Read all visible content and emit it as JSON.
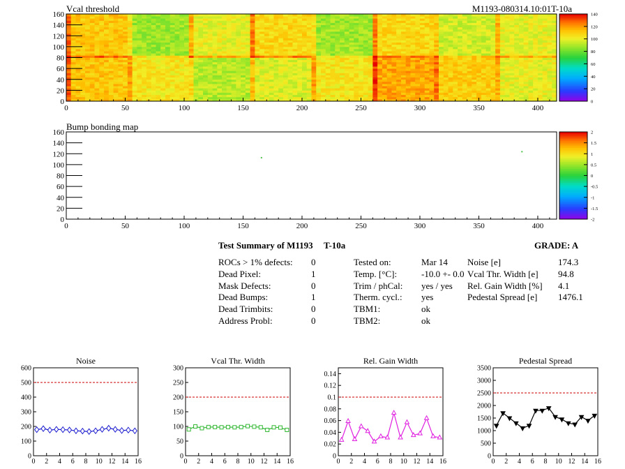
{
  "maps": [
    {
      "title": "Vcal threshold",
      "module_id": "M1193-080314.10:01T-10a",
      "x_ticks": [
        "0",
        "50",
        "100",
        "150",
        "200",
        "250",
        "300",
        "350",
        "400"
      ],
      "y_ticks": [
        "0",
        "20",
        "40",
        "60",
        "80",
        "100",
        "120",
        "140",
        "160"
      ],
      "colorbar_ticks": [
        "140",
        "120",
        "100",
        "80",
        "60",
        "40",
        "20",
        "0"
      ],
      "xlim": [
        0,
        416
      ],
      "ylim": [
        0,
        160
      ],
      "zlim": [
        0,
        140
      ]
    },
    {
      "title": "Bump bonding map",
      "x_ticks": [
        "0",
        "50",
        "100",
        "150",
        "200",
        "250",
        "300",
        "350",
        "400"
      ],
      "y_ticks": [
        "0",
        "20",
        "40",
        "60",
        "80",
        "100",
        "120",
        "140",
        "160"
      ],
      "colorbar_ticks": [
        "2",
        "1.5",
        "1",
        "0.5",
        "0",
        "-0.5",
        "-1",
        "-1.5",
        "-2"
      ],
      "xlim": [
        0,
        416
      ],
      "ylim": [
        0,
        160
      ],
      "zlim": [
        -2,
        2
      ],
      "defects": [
        [
          165,
          113
        ],
        [
          386,
          124
        ]
      ]
    }
  ],
  "summary": {
    "title": "Test Summary of M1193",
    "module_tag": "T-10a",
    "grade": "GRADE:  A",
    "defects": [
      {
        "label": "ROCs > 1% defects:",
        "value": "0"
      },
      {
        "label": "Dead Pixel:",
        "value": "1"
      },
      {
        "label": "Mask Defects:",
        "value": "0"
      },
      {
        "label": "Dead Bumps:",
        "value": "1"
      },
      {
        "label": "Dead Trimbits:",
        "value": "0"
      },
      {
        "label": "Address Probl:",
        "value": "0"
      }
    ],
    "conditions": [
      {
        "label": "Tested on:",
        "value": "Mar 14"
      },
      {
        "label": "Temp. [°C]:",
        "value": "-10.0 +- 0.0"
      },
      {
        "label": "Trim / phCal:",
        "value": "yes / yes"
      },
      {
        "label": "Therm. cycl.:",
        "value": "yes"
      },
      {
        "label": "TBM1:",
        "value": "ok"
      },
      {
        "label": "TBM2:",
        "value": "ok"
      }
    ],
    "results": [
      {
        "label": "Noise [e]",
        "value": "174.3"
      },
      {
        "label": "Vcal Thr. Width [e]",
        "value": "94.8"
      },
      {
        "label": "Rel. Gain Width [%]",
        "value": "4.1"
      },
      {
        "label": "Pedestal Spread [e]",
        "value": "1476.1"
      }
    ]
  },
  "chart_data": [
    {
      "type": "line",
      "title": "Noise",
      "x": [
        0,
        1,
        2,
        3,
        4,
        5,
        6,
        7,
        8,
        9,
        10,
        11,
        12,
        13,
        14,
        15
      ],
      "values": [
        178,
        185,
        175,
        180,
        178,
        176,
        170,
        168,
        165,
        170,
        180,
        188,
        180,
        172,
        175,
        170
      ],
      "limit": 500,
      "ylim": [
        0,
        600
      ],
      "xlim": [
        0,
        16
      ],
      "y_ticks": [
        "0",
        "100",
        "200",
        "300",
        "400",
        "500",
        "600"
      ],
      "x_ticks": [
        "0",
        "2",
        "4",
        "6",
        "8",
        "10",
        "12",
        "14",
        "16"
      ],
      "color": "#1f1fd0",
      "marker": "diamond"
    },
    {
      "type": "line",
      "title": "Vcal Thr. Width",
      "x": [
        0,
        1,
        2,
        3,
        4,
        5,
        6,
        7,
        8,
        9,
        10,
        11,
        12,
        13,
        14,
        15
      ],
      "values": [
        90,
        100,
        94,
        98,
        98,
        97,
        98,
        97,
        98,
        101,
        99,
        97,
        88,
        97,
        96,
        88
      ],
      "limit": 200,
      "ylim": [
        0,
        300
      ],
      "xlim": [
        0,
        16
      ],
      "y_ticks": [
        "0",
        "50",
        "100",
        "150",
        "200",
        "250",
        "300"
      ],
      "x_ticks": [
        "0",
        "2",
        "4",
        "6",
        "8",
        "10",
        "12",
        "14",
        "16"
      ],
      "color": "#33b833",
      "marker": "square"
    },
    {
      "type": "line",
      "title": "Rel. Gain Width",
      "x": [
        0,
        1,
        2,
        3,
        4,
        5,
        6,
        7,
        8,
        9,
        10,
        11,
        12,
        13,
        14,
        15
      ],
      "values": [
        0.027,
        0.059,
        0.028,
        0.05,
        0.042,
        0.024,
        0.033,
        0.031,
        0.073,
        0.031,
        0.057,
        0.035,
        0.038,
        0.064,
        0.033,
        0.031
      ],
      "limit": 0.1,
      "ylim": [
        0,
        0.15
      ],
      "xlim": [
        0,
        16
      ],
      "y_ticks": [
        "0",
        "0.02",
        "0.04",
        "0.06",
        "0.08",
        "0.1",
        "0.12",
        "0.14"
      ],
      "x_ticks": [
        "0",
        "2",
        "4",
        "6",
        "8",
        "10",
        "12",
        "14",
        "16"
      ],
      "color": "#e020e0",
      "marker": "triangle-up"
    },
    {
      "type": "line",
      "title": "Pedestal Spread",
      "x": [
        0,
        1,
        2,
        3,
        4,
        5,
        6,
        7,
        8,
        9,
        10,
        11,
        12,
        13,
        14,
        15
      ],
      "values": [
        1200,
        1700,
        1500,
        1300,
        1100,
        1200,
        1800,
        1800,
        1900,
        1550,
        1450,
        1300,
        1250,
        1550,
        1400,
        1600
      ],
      "limit": 2500,
      "ylim": [
        0,
        3500
      ],
      "xlim": [
        0,
        16
      ],
      "y_ticks": [
        "0",
        "500",
        "1000",
        "1500",
        "2000",
        "2500",
        "3000",
        "3500"
      ],
      "x_ticks": [
        "0",
        "2",
        "4",
        "6",
        "8",
        "10",
        "12",
        "14",
        "16"
      ],
      "color": "#000000",
      "marker": "triangle-down"
    }
  ],
  "colors": {
    "limit_line": "#cc0000"
  }
}
